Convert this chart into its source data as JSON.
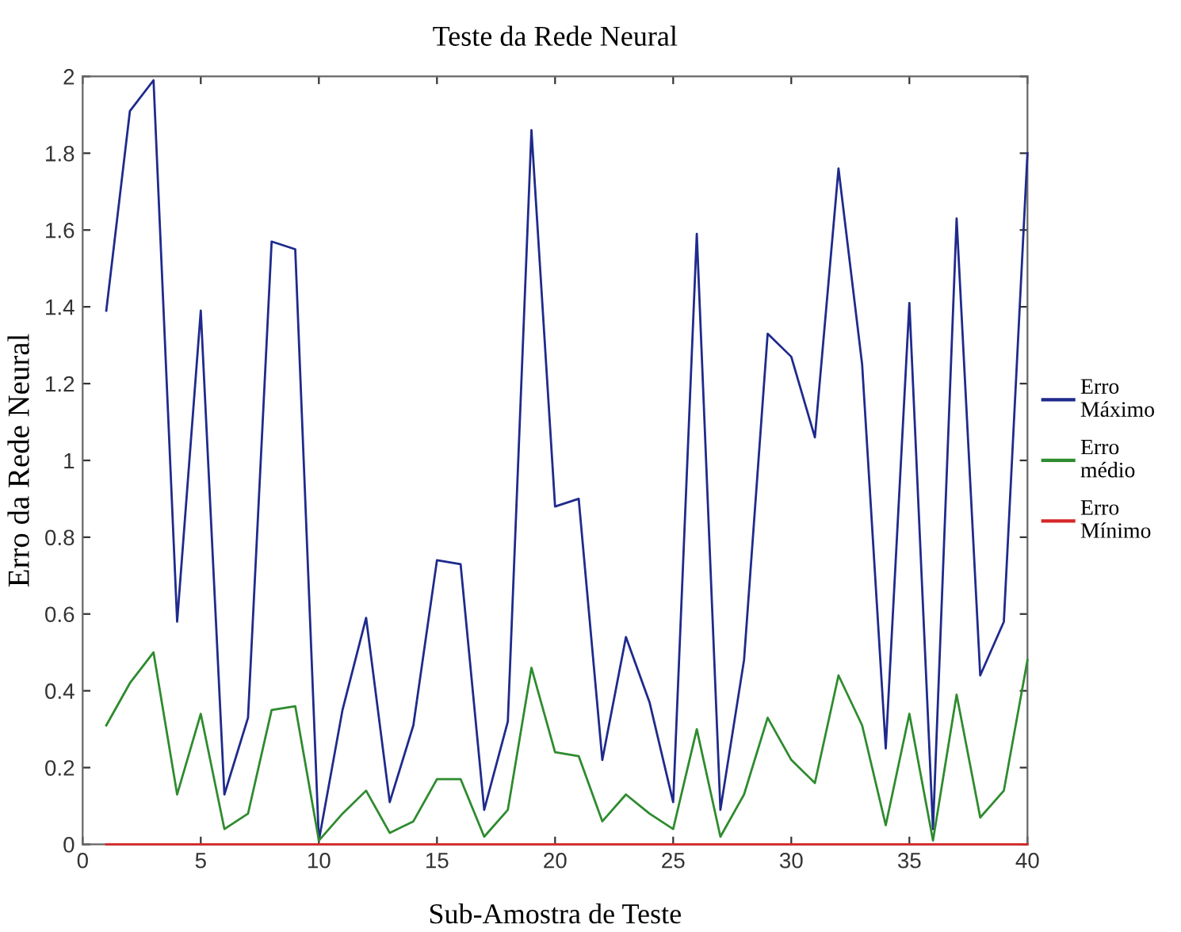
{
  "chart_data": {
    "type": "line",
    "title": "Teste da Rede Neural",
    "xlabel": "Sub-Amostra de Teste",
    "ylabel": "Erro da Rede Neural",
    "x": [
      1,
      2,
      3,
      4,
      5,
      6,
      7,
      8,
      9,
      10,
      11,
      12,
      13,
      14,
      15,
      16,
      17,
      18,
      19,
      20,
      21,
      22,
      23,
      24,
      25,
      26,
      27,
      28,
      29,
      30,
      31,
      32,
      33,
      34,
      35,
      36,
      37,
      38,
      39,
      40
    ],
    "series": [
      {
        "name": "Erro Máximo",
        "color": "#1f2a8c",
        "values": [
          1.39,
          1.91,
          1.99,
          0.58,
          1.39,
          0.13,
          0.33,
          1.57,
          1.55,
          0.01,
          0.35,
          0.59,
          0.11,
          0.31,
          0.74,
          0.73,
          0.09,
          0.32,
          1.86,
          0.88,
          0.9,
          0.22,
          0.54,
          0.37,
          0.11,
          1.59,
          0.09,
          0.48,
          1.33,
          1.27,
          1.06,
          1.76,
          1.25,
          0.25,
          1.41,
          0.04,
          1.63,
          0.44,
          0.58,
          1.8
        ]
      },
      {
        "name": "Erro médio",
        "color": "#2e8b2e",
        "values": [
          0.31,
          0.42,
          0.5,
          0.13,
          0.34,
          0.04,
          0.08,
          0.35,
          0.36,
          0.01,
          0.08,
          0.14,
          0.03,
          0.06,
          0.17,
          0.17,
          0.02,
          0.09,
          0.46,
          0.24,
          0.23,
          0.06,
          0.13,
          0.08,
          0.04,
          0.3,
          0.02,
          0.13,
          0.33,
          0.22,
          0.16,
          0.44,
          0.31,
          0.05,
          0.34,
          0.01,
          0.39,
          0.07,
          0.14,
          0.48
        ]
      },
      {
        "name": "Erro Mínimo",
        "color": "#d62728",
        "values": [
          0,
          0,
          0,
          0,
          0,
          0,
          0,
          0,
          0,
          0,
          0,
          0,
          0,
          0,
          0,
          0,
          0,
          0,
          0,
          0,
          0,
          0,
          0,
          0,
          0,
          0,
          0,
          0,
          0,
          0,
          0,
          0,
          0,
          0,
          0,
          0,
          0,
          0,
          0,
          0
        ]
      }
    ],
    "xlim": [
      0,
      40
    ],
    "xticks": [
      0,
      5,
      10,
      15,
      20,
      25,
      30,
      35,
      40
    ],
    "ylim": [
      0,
      2
    ],
    "yticks": [
      0,
      0.2,
      0.4,
      0.6,
      0.8,
      1,
      1.2,
      1.4,
      1.6,
      1.8,
      2
    ],
    "grid": false,
    "legend": "right",
    "marker": "none",
    "line_style": "solid"
  }
}
